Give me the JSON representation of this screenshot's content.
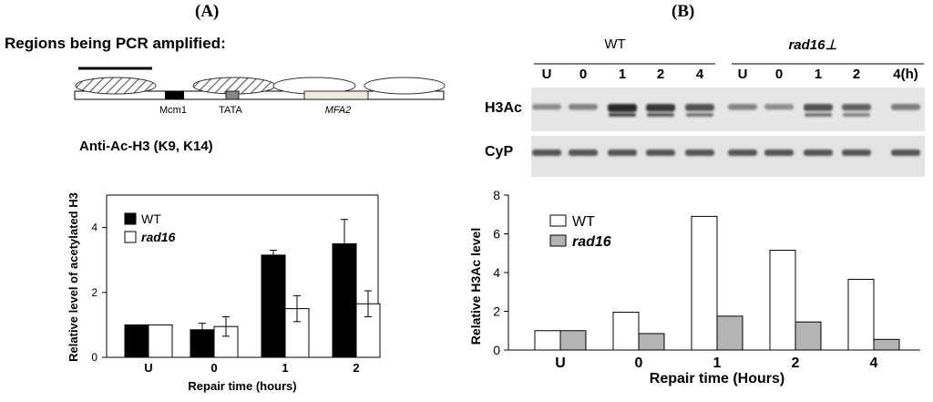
{
  "panels": {
    "a": {
      "label": "(A)"
    },
    "b": {
      "label": "(B)"
    }
  },
  "schematic": {
    "heading": "Regions being PCR amplified:",
    "labels": {
      "mcm1": "Mcm1",
      "tata": "TATA",
      "mfa2": "MFA2"
    }
  },
  "antibody_label": "Anti-Ac-H3 (K9, K14)",
  "blot": {
    "groups": [
      "WT",
      "rad16⊥"
    ],
    "lanes": [
      "U",
      "0",
      "1",
      "2",
      "4",
      "U",
      "0",
      "1",
      "2",
      "4(h)"
    ],
    "rows": [
      "H3Ac",
      "CyP"
    ]
  },
  "chart_data": [
    {
      "type": "bar",
      "title": "",
      "xlabel": "Repair time (hours)",
      "ylabel": "Relative level of acetylated H3",
      "categories": [
        "U",
        "0",
        "1",
        "2"
      ],
      "ylim": [
        0,
        5
      ],
      "yticks": [
        0,
        2,
        4
      ],
      "legend_position": "top-left",
      "series": [
        {
          "name": "WT",
          "color": "#000000",
          "values": [
            1.0,
            0.85,
            3.15,
            3.5
          ],
          "errors": [
            0,
            0.2,
            0.15,
            0.75
          ]
        },
        {
          "name": "rad16",
          "color": "#ffffff",
          "values": [
            1.0,
            0.95,
            1.5,
            1.65
          ],
          "errors": [
            0,
            0.3,
            0.4,
            0.4
          ]
        }
      ]
    },
    {
      "type": "bar",
      "title": "",
      "xlabel": "Repair time (Hours)",
      "ylabel": "Relative H3Ac level",
      "categories": [
        "U",
        "0",
        "1",
        "2",
        "4"
      ],
      "ylim": [
        0,
        8
      ],
      "yticks": [
        0,
        2,
        4,
        6,
        8
      ],
      "legend_position": "top-left",
      "series": [
        {
          "name": "WT",
          "color": "#ffffff",
          "values": [
            1.0,
            1.95,
            6.9,
            5.15,
            3.65
          ]
        },
        {
          "name": "rad16",
          "color": "#b4b4b4",
          "values": [
            1.0,
            0.85,
            1.75,
            1.45,
            0.55
          ]
        }
      ]
    }
  ]
}
